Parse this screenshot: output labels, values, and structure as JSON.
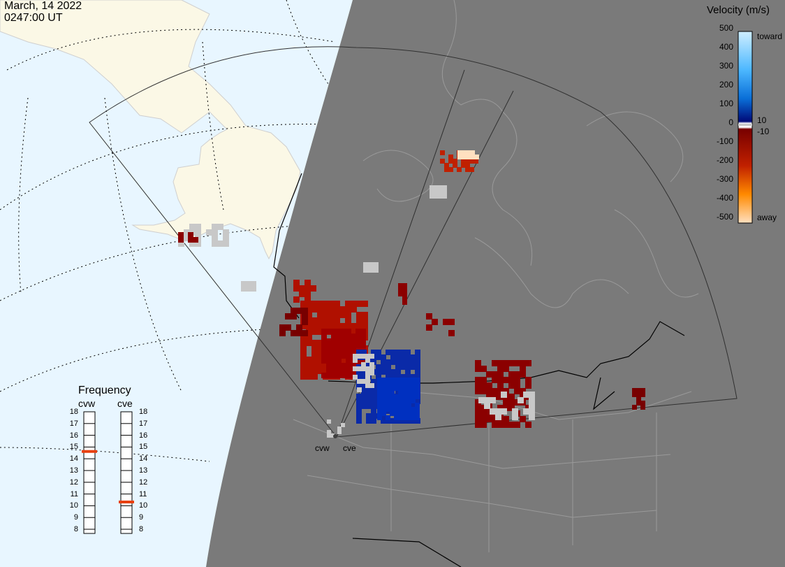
{
  "timestamp": {
    "date": "March, 14 2022",
    "time": "0247:00 UT"
  },
  "velocity_scale": {
    "title": "Velocity (m/s)",
    "ticks": [
      "500",
      "400",
      "300",
      "200",
      "100",
      "0",
      "-100",
      "-200",
      "-300",
      "-400",
      "-500"
    ],
    "side_labels": {
      "top": "toward",
      "plus10": "10",
      "minus10": "-10",
      "bottom": "away"
    },
    "colors": {
      "toward_max": "#cfeeff",
      "toward_mid": "#0a78e8",
      "toward_min": "#000a78",
      "away_min": "#780000",
      "away_mid": "#e84a0a",
      "away_max": "#ffe0c0",
      "ground_scatter": "#c8c8c8"
    }
  },
  "frequency_panel": {
    "title": "Frequency",
    "radars": [
      {
        "name": "cvw",
        "frequency_mhz": 14.8
      },
      {
        "name": "cve",
        "frequency_mhz": 10.5
      }
    ],
    "ticks": [
      "18",
      "17",
      "16",
      "15",
      "14",
      "13",
      "12",
      "11",
      "10",
      "9",
      "8"
    ],
    "marker_color": "#e84010"
  },
  "radar_sites": [
    {
      "name": "cvw"
    },
    {
      "name": "cve"
    }
  ],
  "map_colors": {
    "ocean": "#e8f6ff",
    "land": "#fbf8e6",
    "night": "#7a7a7a",
    "borders": "#000000",
    "fov": "#303030"
  }
}
